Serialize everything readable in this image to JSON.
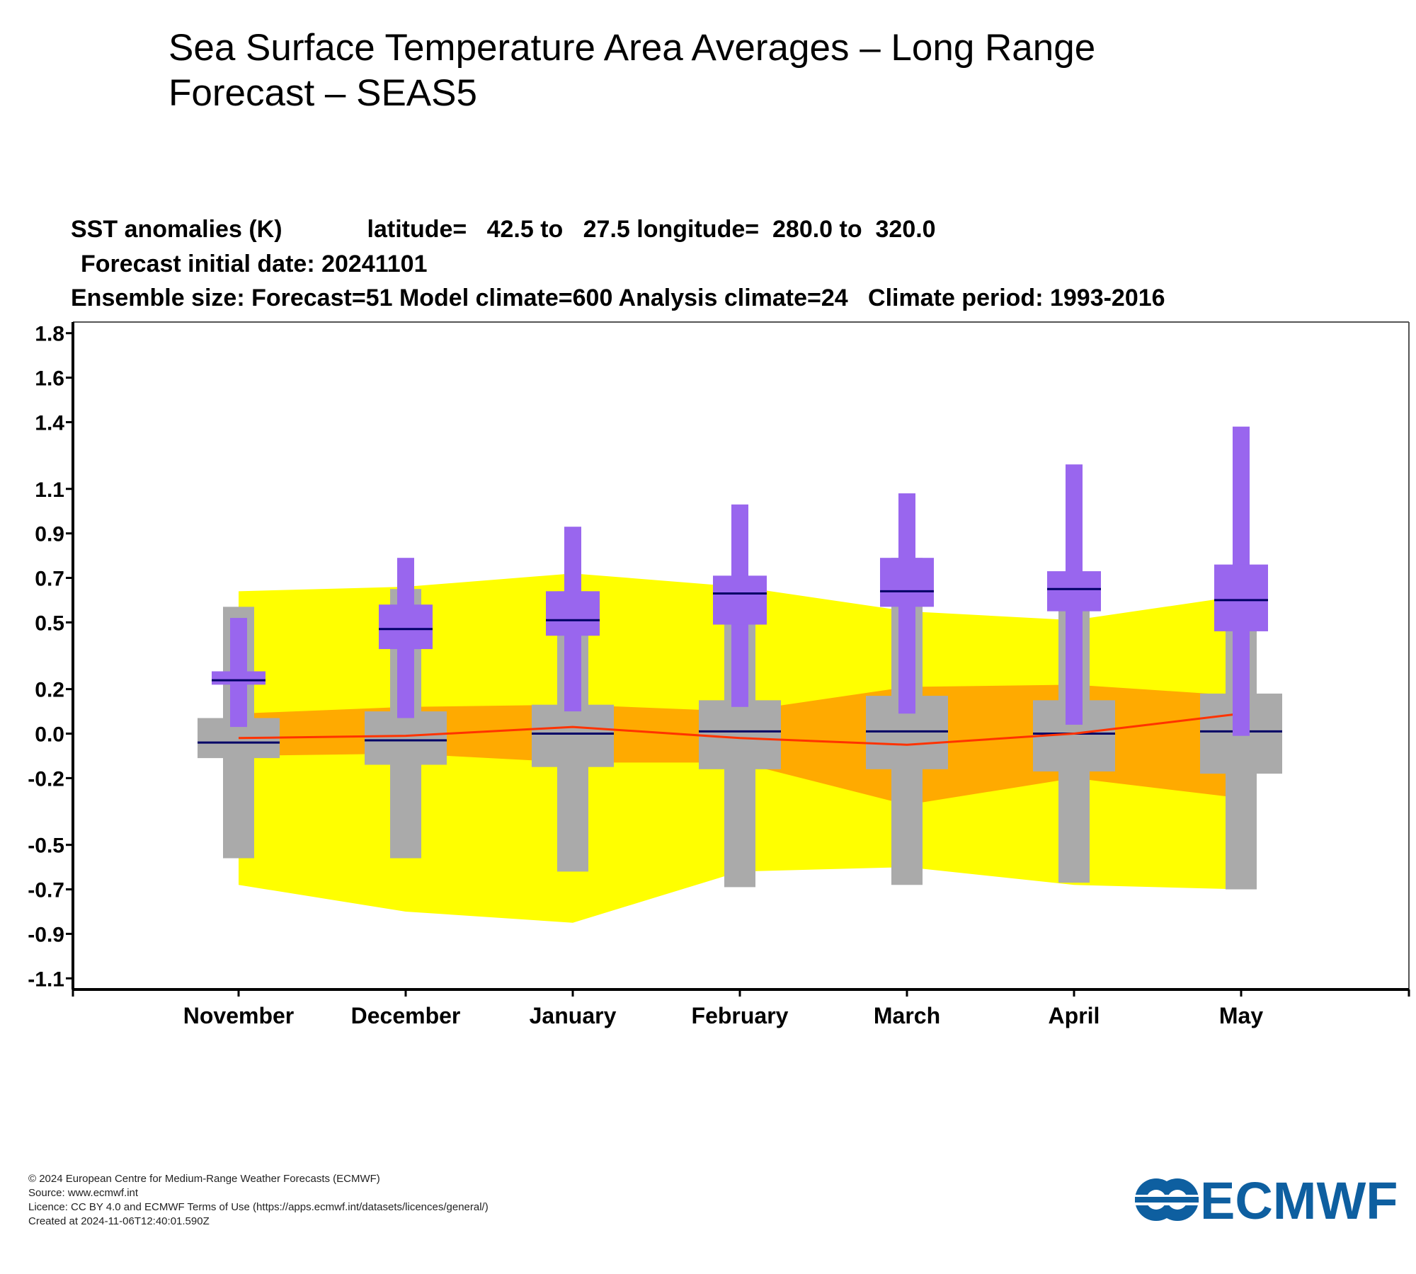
{
  "page": {
    "title": "Sea Surface Temperature Area Averages – Long Range Forecast – SEAS5"
  },
  "header": {
    "line1_variable": "SST anomalies (K)",
    "line1_lat": "latitude=   42.5 to   27.5",
    "line1_lon": "longitude=  280.0 to  320.0",
    "line2": "Forecast initial date: 20241101",
    "line3": "Ensemble size: Forecast=51 Model climate=600 Analysis climate=24   Climate period: 1993-2016"
  },
  "chart_data": {
    "type": "box",
    "y_tick_labels": [
      "1.8",
      "1.6",
      "1.4",
      "1.1",
      "0.9",
      "0.7",
      "0.5",
      "0.2",
      "0.0",
      "-0.2",
      "-0.5",
      "-0.7",
      "-0.9",
      "-1.1"
    ],
    "y_tick_values": [
      1.8,
      1.6,
      1.4,
      1.1,
      0.9,
      0.7,
      0.5,
      0.2,
      0.0,
      -0.2,
      -0.5,
      -0.7,
      -0.9,
      -1.1
    ],
    "ylim": [
      -1.15,
      1.85
    ],
    "categories": [
      "November",
      "December",
      "January",
      "February",
      "March",
      "April",
      "May"
    ],
    "forecast_purple": [
      {
        "min": 0.03,
        "p25": 0.22,
        "median": 0.24,
        "p75": 0.28,
        "max": 0.52
      },
      {
        "min": 0.07,
        "p25": 0.38,
        "median": 0.47,
        "p75": 0.58,
        "max": 0.79
      },
      {
        "min": 0.1,
        "p25": 0.44,
        "median": 0.51,
        "p75": 0.64,
        "max": 0.93
      },
      {
        "min": 0.12,
        "p25": 0.49,
        "median": 0.63,
        "p75": 0.71,
        "max": 1.03
      },
      {
        "min": 0.09,
        "p25": 0.57,
        "median": 0.64,
        "p75": 0.79,
        "max": 1.08
      },
      {
        "min": 0.04,
        "p25": 0.55,
        "median": 0.65,
        "p75": 0.73,
        "max": 1.21
      },
      {
        "min": -0.01,
        "p25": 0.46,
        "median": 0.6,
        "p75": 0.76,
        "max": 1.38
      }
    ],
    "model_climate_grey": [
      {
        "min": -0.56,
        "p25": -0.11,
        "median": -0.04,
        "p75": 0.07,
        "max": 0.57
      },
      {
        "min": -0.56,
        "p25": -0.14,
        "median": -0.03,
        "p75": 0.1,
        "max": 0.65
      },
      {
        "min": -0.62,
        "p25": -0.15,
        "median": 0.0,
        "p75": 0.13,
        "max": 0.64
      },
      {
        "min": -0.69,
        "p25": -0.16,
        "median": 0.01,
        "p75": 0.15,
        "max": 0.7
      },
      {
        "min": -0.68,
        "p25": -0.16,
        "median": 0.01,
        "p75": 0.17,
        "max": 0.79
      },
      {
        "min": -0.67,
        "p25": -0.17,
        "median": 0.0,
        "p75": 0.15,
        "max": 0.72
      },
      {
        "min": -0.7,
        "p25": -0.18,
        "median": 0.01,
        "p75": 0.18,
        "max": 0.75
      }
    ],
    "analysis_climate_yellow": {
      "low": [
        -0.68,
        -0.8,
        -0.85,
        -0.62,
        -0.6,
        -0.68,
        -0.7
      ],
      "high": [
        0.64,
        0.66,
        0.72,
        0.66,
        0.55,
        0.51,
        0.62
      ]
    },
    "analysis_climate_orange": {
      "low": [
        -0.1,
        -0.09,
        -0.13,
        -0.13,
        -0.32,
        -0.2,
        -0.29
      ],
      "high": [
        0.09,
        0.12,
        0.13,
        0.1,
        0.21,
        0.22,
        0.17
      ]
    },
    "analysis_climate_median_red": [
      -0.02,
      -0.01,
      0.03,
      -0.02,
      -0.05,
      0.0,
      0.09
    ],
    "colors": {
      "forecast": "#9966ee",
      "model_climate": "#aaaaaa",
      "analysis_outer": "#ffff00",
      "analysis_inner": "#ffaa00",
      "analysis_median": "#ff3300",
      "median_line": "#000066"
    }
  },
  "footer": {
    "copyright": "© 2024 European Centre for Medium-Range Weather Forecasts (ECMWF)",
    "source": "Source: www.ecmwf.int",
    "licence": "Licence: CC BY 4.0 and ECMWF Terms of Use (https://apps.ecmwf.int/datasets/licences/general/)",
    "created": "Created at 2024-11-06T12:40:01.590Z"
  },
  "logo": {
    "text": "ECMWF",
    "color": "#0e5fa0",
    "icon": "ecmwf-logo-icon"
  }
}
